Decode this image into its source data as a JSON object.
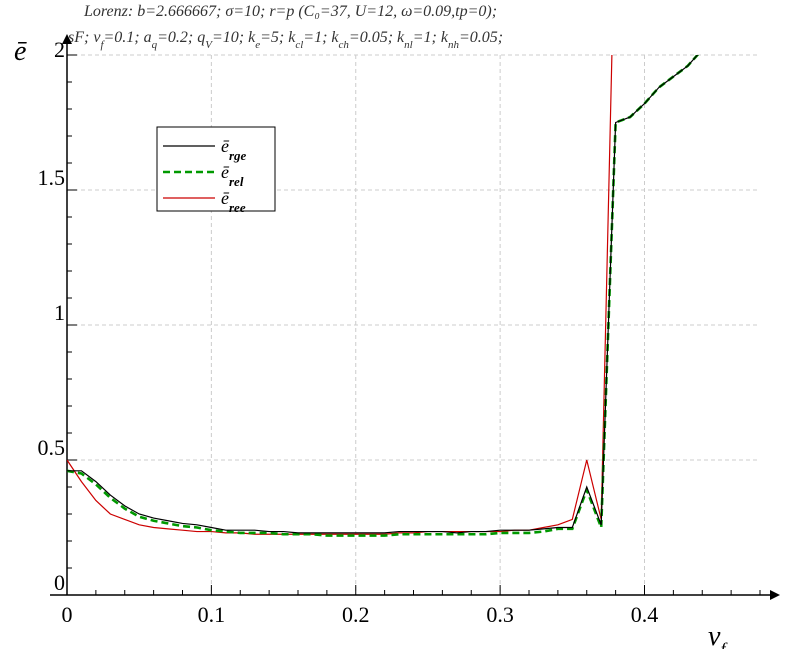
{
  "chart_data": {
    "type": "line",
    "title_lines": [
      "Lorenz: b=2.666667; σ=10; r=p (C₀=37, U=12, ω=0.09,tp=0);",
      "sF; v_f=0.1; a_q=0.2; q_V=10; k_e=5; k_cl=1; k_ch=0.05; k_nl=1; k_nh=0.05;"
    ],
    "xlabel": "v_f",
    "ylabel": "ē",
    "xlim": [
      0,
      0.48
    ],
    "ylim": [
      0,
      2
    ],
    "x_ticks": [
      {
        "value": 0,
        "label": "0"
      },
      {
        "value": 0.1,
        "label": "0.1"
      },
      {
        "value": 0.2,
        "label": "0.2"
      },
      {
        "value": 0.3,
        "label": "0.3"
      },
      {
        "value": 0.4,
        "label": "0.4"
      }
    ],
    "y_ticks": [
      {
        "value": 0,
        "label": "0"
      },
      {
        "value": 0.5,
        "label": "0.5"
      },
      {
        "value": 1,
        "label": "1"
      },
      {
        "value": 1.5,
        "label": "1.5"
      },
      {
        "value": 2,
        "label": "2"
      }
    ],
    "grid": true,
    "legend_position": "upper-left",
    "x": [
      0,
      0.01,
      0.02,
      0.03,
      0.04,
      0.05,
      0.06,
      0.07,
      0.08,
      0.09,
      0.1,
      0.11,
      0.12,
      0.13,
      0.14,
      0.15,
      0.16,
      0.17,
      0.18,
      0.19,
      0.2,
      0.21,
      0.22,
      0.23,
      0.24,
      0.25,
      0.26,
      0.27,
      0.28,
      0.29,
      0.3,
      0.31,
      0.32,
      0.33,
      0.34,
      0.35,
      0.36,
      0.37,
      0.38,
      0.39,
      0.4,
      0.41,
      0.42,
      0.43,
      0.44,
      0.45,
      0.46
    ],
    "series": [
      {
        "name": "ē_rge",
        "color": "#000000",
        "dash": "solid",
        "values": [
          0.46,
          0.46,
          0.42,
          0.37,
          0.33,
          0.3,
          0.285,
          0.275,
          0.265,
          0.26,
          0.25,
          0.24,
          0.24,
          0.24,
          0.235,
          0.235,
          0.23,
          0.23,
          0.23,
          0.23,
          0.23,
          0.23,
          0.23,
          0.235,
          0.235,
          0.235,
          0.235,
          0.23,
          0.235,
          0.235,
          0.24,
          0.24,
          0.24,
          0.245,
          0.25,
          0.25,
          0.4,
          0.26,
          1.75,
          1.77,
          1.82,
          1.88,
          1.92,
          1.96,
          2.02,
          2.08,
          2.14
        ]
      },
      {
        "name": "ē_rel",
        "color": "#009900",
        "dash": "dashed",
        "values": [
          0.46,
          0.45,
          0.41,
          0.36,
          0.32,
          0.29,
          0.275,
          0.265,
          0.255,
          0.25,
          0.24,
          0.235,
          0.23,
          0.23,
          0.23,
          0.225,
          0.225,
          0.225,
          0.22,
          0.22,
          0.22,
          0.22,
          0.22,
          0.225,
          0.225,
          0.225,
          0.225,
          0.225,
          0.225,
          0.225,
          0.23,
          0.23,
          0.23,
          0.235,
          0.245,
          0.245,
          0.39,
          0.25,
          1.75,
          1.77,
          1.82,
          1.88,
          1.92,
          1.96,
          2.02,
          2.08,
          2.14
        ]
      },
      {
        "name": "ē_ree",
        "color": "#cc0000",
        "dash": "solid",
        "values": [
          0.5,
          0.42,
          0.35,
          0.3,
          0.28,
          0.26,
          0.25,
          0.245,
          0.24,
          0.235,
          0.235,
          0.23,
          0.23,
          0.225,
          0.225,
          0.225,
          0.225,
          0.225,
          0.225,
          0.225,
          0.225,
          0.225,
          0.225,
          0.23,
          0.23,
          0.235,
          0.235,
          0.235,
          0.235,
          0.235,
          0.235,
          0.24,
          0.24,
          0.25,
          0.26,
          0.28,
          0.5,
          0.28,
          2.6,
          null,
          null,
          null,
          null,
          null,
          null,
          null,
          null
        ]
      }
    ]
  }
}
